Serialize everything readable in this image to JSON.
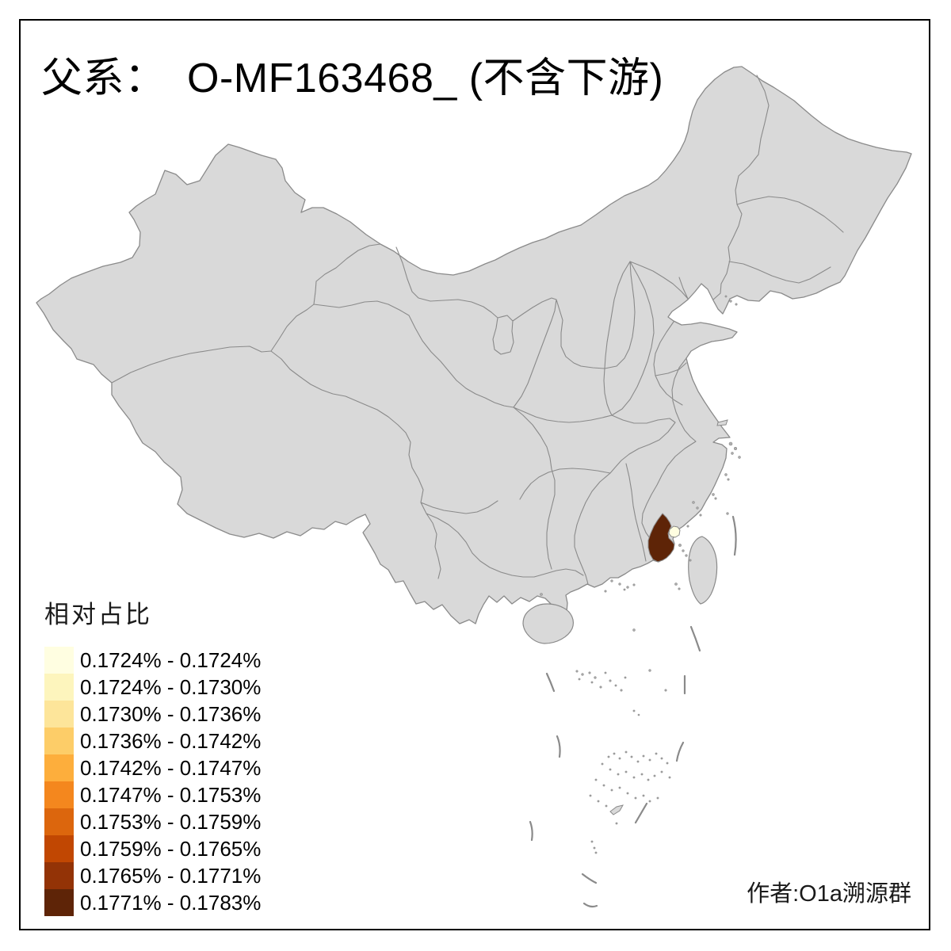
{
  "title": {
    "text": "父系：　O-MF163468_ (不含下游)"
  },
  "legend": {
    "title": "相对占比",
    "items": [
      {
        "range": "0.1724% - 0.1724%",
        "color": "#FFFEE1"
      },
      {
        "range": "0.1724% - 0.1730%",
        "color": "#FDF5BD"
      },
      {
        "range": "0.1730% - 0.1736%",
        "color": "#FDE59A"
      },
      {
        "range": "0.1736% - 0.1742%",
        "color": "#FDCD68"
      },
      {
        "range": "0.1742% - 0.1747%",
        "color": "#FDAE3C"
      },
      {
        "range": "0.1747% - 0.1753%",
        "color": "#F4871E"
      },
      {
        "range": "0.1753% - 0.1759%",
        "color": "#DC660D"
      },
      {
        "range": "0.1759% - 0.1765%",
        "color": "#C14702"
      },
      {
        "range": "0.1765% - 0.1771%",
        "color": "#933306"
      },
      {
        "range": "0.1771% - 0.1783%",
        "color": "#5E2407"
      }
    ]
  },
  "attribution": {
    "text": "作者:O1a溯源群"
  },
  "map": {
    "land_color": "#D9D9D9",
    "border_color": "#8A8A8A",
    "sea_color": "#FFFFFF",
    "frame_color": "#000000",
    "highlight_dark": {
      "color": "#5E2407",
      "bin": "0.1771% - 0.1783%"
    },
    "highlight_light": {
      "color": "#FFFEE1",
      "bin": "0.1724% - 0.1724%"
    }
  },
  "chart_data": {
    "type": "choropleth_map",
    "title": "父系： O-MF163468_ (不含下游)",
    "legend_title": "相对占比",
    "legend_position": "bottom-left",
    "bins": [
      "0.1724% - 0.1724%",
      "0.1724% - 0.1730%",
      "0.1730% - 0.1736%",
      "0.1736% - 0.1742%",
      "0.1742% - 0.1747%",
      "0.1747% - 0.1753%",
      "0.1753% - 0.1759%",
      "0.1759% - 0.1765%",
      "0.1765% - 0.1771%",
      "0.1771% - 0.1783%"
    ],
    "bin_colors": [
      "#FFFEE1",
      "#FDF5BD",
      "#FDE59A",
      "#FDCD68",
      "#FDAE3C",
      "#F4871E",
      "#DC660D",
      "#C14702",
      "#933306",
      "#5E2407"
    ],
    "regions_colored": [
      {
        "location": "southeast coastal region (dark highlight)",
        "bin": "0.1771% - 0.1783%",
        "color": "#5E2407"
      },
      {
        "location": "small adjacent coastal region (light highlight)",
        "bin": "0.1724% - 0.1724%",
        "color": "#FFFEE1"
      }
    ],
    "other_regions": "no data (gray #D9D9D9)",
    "attribution": "作者:O1a溯源群"
  }
}
